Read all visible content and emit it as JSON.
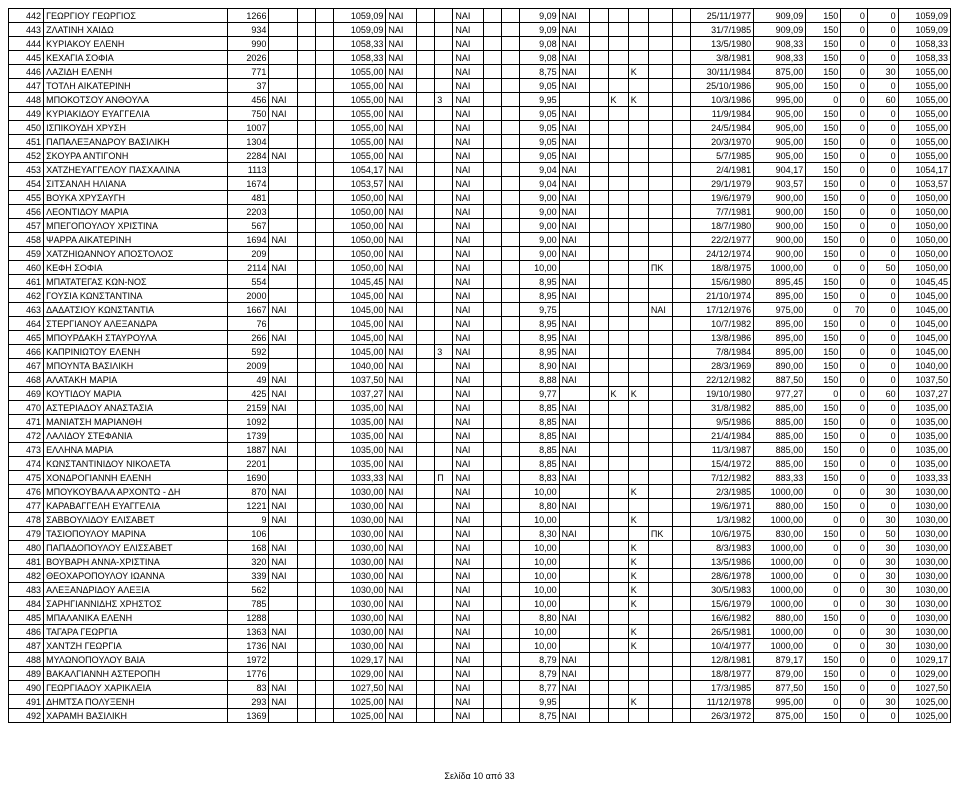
{
  "footer": "Σελίδα 10 από 33",
  "rows": [
    {
      "n": "442",
      "name": "ΓΕΩΡΓΙΟΥ ΓΕΩΡΓΙΟΣ",
      "id": "1266",
      "f1": "",
      "v1": "1059,09",
      "a": "ΝΑΙ",
      "p": "",
      "b": "ΝΑΙ",
      "v2": "9,09",
      "c": "ΝΑΙ",
      "k1": "",
      "k2": "",
      "nx": "",
      "date": "25/11/1977",
      "v3": "909,09",
      "v4": "150",
      "v5": "0",
      "v6": "0",
      "v7": "1059,09"
    },
    {
      "n": "443",
      "name": "ΖΛΑΤΙΝΗ ΧΑΙΔΩ",
      "id": "934",
      "f1": "",
      "v1": "1059,09",
      "a": "ΝΑΙ",
      "p": "",
      "b": "ΝΑΙ",
      "v2": "9,09",
      "c": "ΝΑΙ",
      "k1": "",
      "k2": "",
      "nx": "",
      "date": "31/7/1985",
      "v3": "909,09",
      "v4": "150",
      "v5": "0",
      "v6": "0",
      "v7": "1059,09"
    },
    {
      "n": "444",
      "name": "ΚΥΡΙΑΚΟΥ ΕΛΕΝΗ",
      "id": "990",
      "f1": "",
      "v1": "1058,33",
      "a": "ΝΑΙ",
      "p": "",
      "b": "ΝΑΙ",
      "v2": "9,08",
      "c": "ΝΑΙ",
      "k1": "",
      "k2": "",
      "nx": "",
      "date": "13/5/1980",
      "v3": "908,33",
      "v4": "150",
      "v5": "0",
      "v6": "0",
      "v7": "1058,33"
    },
    {
      "n": "445",
      "name": "ΚΕΧΑΓΙΑ ΣΟΦΙΑ",
      "id": "2026",
      "f1": "",
      "v1": "1058,33",
      "a": "ΝΑΙ",
      "p": "",
      "b": "ΝΑΙ",
      "v2": "9,08",
      "c": "ΝΑΙ",
      "k1": "",
      "k2": "",
      "nx": "",
      "date": "3/8/1981",
      "v3": "908,33",
      "v4": "150",
      "v5": "0",
      "v6": "0",
      "v7": "1058,33"
    },
    {
      "n": "446",
      "name": "ΛΑΖΙΔΗ ΕΛΕΝΗ",
      "id": "771",
      "f1": "",
      "v1": "1055,00",
      "a": "ΝΑΙ",
      "p": "",
      "b": "ΝΑΙ",
      "v2": "8,75",
      "c": "ΝΑΙ",
      "k1": "",
      "k2": "Κ",
      "nx": "",
      "date": "30/11/1984",
      "v3": "875,00",
      "v4": "150",
      "v5": "0",
      "v6": "30",
      "v7": "1055,00"
    },
    {
      "n": "447",
      "name": "ΤΟΤΛΗ ΑΙΚΑΤΕΡΙΝΗ",
      "id": "37",
      "f1": "",
      "v1": "1055,00",
      "a": "ΝΑΙ",
      "p": "",
      "b": "ΝΑΙ",
      "v2": "9,05",
      "c": "ΝΑΙ",
      "k1": "",
      "k2": "",
      "nx": "",
      "date": "25/10/1986",
      "v3": "905,00",
      "v4": "150",
      "v5": "0",
      "v6": "0",
      "v7": "1055,00"
    },
    {
      "n": "448",
      "name": "ΜΠΟΚΟΤΣΟΥ ΑΝΘΟΥΛΑ",
      "id": "456",
      "f1": "ΝΑΙ",
      "v1": "1055,00",
      "a": "ΝΑΙ",
      "p": "3",
      "b": "ΝΑΙ",
      "v2": "9,95",
      "c": "",
      "k1": "Κ",
      "k2": "Κ",
      "nx": "",
      "date": "10/3/1986",
      "v3": "995,00",
      "v4": "0",
      "v5": "0",
      "v6": "60",
      "v7": "1055,00"
    },
    {
      "n": "449",
      "name": "ΚΥΡΙΑΚΙΔΟΥ ΕΥΑΓΓΕΛΙΑ",
      "id": "750",
      "f1": "ΝΑΙ",
      "v1": "1055,00",
      "a": "ΝΑΙ",
      "p": "",
      "b": "ΝΑΙ",
      "v2": "9,05",
      "c": "ΝΑΙ",
      "k1": "",
      "k2": "",
      "nx": "",
      "date": "11/9/1984",
      "v3": "905,00",
      "v4": "150",
      "v5": "0",
      "v6": "0",
      "v7": "1055,00"
    },
    {
      "n": "450",
      "name": "ΙΣΠΙΚΟΥΔΗ ΧΡΥΣΗ",
      "id": "1007",
      "f1": "",
      "v1": "1055,00",
      "a": "ΝΑΙ",
      "p": "",
      "b": "ΝΑΙ",
      "v2": "9,05",
      "c": "ΝΑΙ",
      "k1": "",
      "k2": "",
      "nx": "",
      "date": "24/5/1984",
      "v3": "905,00",
      "v4": "150",
      "v5": "0",
      "v6": "0",
      "v7": "1055,00"
    },
    {
      "n": "451",
      "name": "ΠΑΠΑΛΕΞΑΝΔΡΟΥ ΒΑΣΙΛΙΚΗ",
      "id": "1304",
      "f1": "",
      "v1": "1055,00",
      "a": "ΝΑΙ",
      "p": "",
      "b": "ΝΑΙ",
      "v2": "9,05",
      "c": "ΝΑΙ",
      "k1": "",
      "k2": "",
      "nx": "",
      "date": "20/3/1970",
      "v3": "905,00",
      "v4": "150",
      "v5": "0",
      "v6": "0",
      "v7": "1055,00"
    },
    {
      "n": "452",
      "name": "ΣΚΟΥΡΑ ΑΝΤΙΓΟΝΗ",
      "id": "2284",
      "f1": "ΝΑΙ",
      "v1": "1055,00",
      "a": "ΝΑΙ",
      "p": "",
      "b": "ΝΑΙ",
      "v2": "9,05",
      "c": "ΝΑΙ",
      "k1": "",
      "k2": "",
      "nx": "",
      "date": "5/7/1985",
      "v3": "905,00",
      "v4": "150",
      "v5": "0",
      "v6": "0",
      "v7": "1055,00"
    },
    {
      "n": "453",
      "name": "ΧΑΤΖΗΕΥΑΓΓΕΛΟΥ ΠΑΣΧΑΛΙΝΑ",
      "id": "1113",
      "f1": "",
      "v1": "1054,17",
      "a": "ΝΑΙ",
      "p": "",
      "b": "ΝΑΙ",
      "v2": "9,04",
      "c": "ΝΑΙ",
      "k1": "",
      "k2": "",
      "nx": "",
      "date": "2/4/1981",
      "v3": "904,17",
      "v4": "150",
      "v5": "0",
      "v6": "0",
      "v7": "1054,17"
    },
    {
      "n": "454",
      "name": "ΣΙΤΣΑΝΛΗ ΗΛΙΑΝΑ",
      "id": "1674",
      "f1": "",
      "v1": "1053,57",
      "a": "ΝΑΙ",
      "p": "",
      "b": "ΝΑΙ",
      "v2": "9,04",
      "c": "ΝΑΙ",
      "k1": "",
      "k2": "",
      "nx": "",
      "date": "29/1/1979",
      "v3": "903,57",
      "v4": "150",
      "v5": "0",
      "v6": "0",
      "v7": "1053,57"
    },
    {
      "n": "455",
      "name": "ΒΟΥΚΑ ΧΡΥΣΑΥΓΗ",
      "id": "481",
      "f1": "",
      "v1": "1050,00",
      "a": "ΝΑΙ",
      "p": "",
      "b": "ΝΑΙ",
      "v2": "9,00",
      "c": "ΝΑΙ",
      "k1": "",
      "k2": "",
      "nx": "",
      "date": "19/6/1979",
      "v3": "900,00",
      "v4": "150",
      "v5": "0",
      "v6": "0",
      "v7": "1050,00"
    },
    {
      "n": "456",
      "name": "ΛΕΟΝΤΙΔΟΥ ΜΑΡΙΑ",
      "id": "2203",
      "f1": "",
      "v1": "1050,00",
      "a": "ΝΑΙ",
      "p": "",
      "b": "ΝΑΙ",
      "v2": "9,00",
      "c": "ΝΑΙ",
      "k1": "",
      "k2": "",
      "nx": "",
      "date": "7/7/1981",
      "v3": "900,00",
      "v4": "150",
      "v5": "0",
      "v6": "0",
      "v7": "1050,00"
    },
    {
      "n": "457",
      "name": "ΜΠΕΓΟΠΟΥΛΟΥ ΧΡΙΣΤΙΝΑ",
      "id": "567",
      "f1": "",
      "v1": "1050,00",
      "a": "ΝΑΙ",
      "p": "",
      "b": "ΝΑΙ",
      "v2": "9,00",
      "c": "ΝΑΙ",
      "k1": "",
      "k2": "",
      "nx": "",
      "date": "18/7/1980",
      "v3": "900,00",
      "v4": "150",
      "v5": "0",
      "v6": "0",
      "v7": "1050,00"
    },
    {
      "n": "458",
      "name": "ΨΑΡΡΑ ΑΙΚΑΤΕΡΙΝΗ",
      "id": "1694",
      "f1": "ΝΑΙ",
      "v1": "1050,00",
      "a": "ΝΑΙ",
      "p": "",
      "b": "ΝΑΙ",
      "v2": "9,00",
      "c": "ΝΑΙ",
      "k1": "",
      "k2": "",
      "nx": "",
      "date": "22/2/1977",
      "v3": "900,00",
      "v4": "150",
      "v5": "0",
      "v6": "0",
      "v7": "1050,00"
    },
    {
      "n": "459",
      "name": "ΧΑΤΖΗΙΩΑΝΝΟΥ ΑΠΟΣΤΟΛΟΣ",
      "id": "209",
      "f1": "",
      "v1": "1050,00",
      "a": "ΝΑΙ",
      "p": "",
      "b": "ΝΑΙ",
      "v2": "9,00",
      "c": "ΝΑΙ",
      "k1": "",
      "k2": "",
      "nx": "",
      "date": "24/12/1974",
      "v3": "900,00",
      "v4": "150",
      "v5": "0",
      "v6": "0",
      "v7": "1050,00"
    },
    {
      "n": "460",
      "name": "ΚΕΦΗ ΣΟΦΙΑ",
      "id": "2114",
      "f1": "ΝΑΙ",
      "v1": "1050,00",
      "a": "ΝΑΙ",
      "p": "",
      "b": "ΝΑΙ",
      "v2": "10,00",
      "c": "",
      "k1": "",
      "k2": "",
      "nx": "ΠΚ",
      "date": "18/8/1975",
      "v3": "1000,00",
      "v4": "0",
      "v5": "0",
      "v6": "50",
      "v7": "1050,00"
    },
    {
      "n": "461",
      "name": "ΜΠΑΤΑΤΕΓΑΣ ΚΩΝ-ΝΟΣ",
      "id": "554",
      "f1": "",
      "v1": "1045,45",
      "a": "ΝΑΙ",
      "p": "",
      "b": "ΝΑΙ",
      "v2": "8,95",
      "c": "ΝΑΙ",
      "k1": "",
      "k2": "",
      "nx": "",
      "date": "15/6/1980",
      "v3": "895,45",
      "v4": "150",
      "v5": "0",
      "v6": "0",
      "v7": "1045,45"
    },
    {
      "n": "462",
      "name": "ΓΟΥΣΙΑ ΚΩΝΣΤΑΝΤΙΝΑ",
      "id": "2000",
      "f1": "",
      "v1": "1045,00",
      "a": "ΝΑΙ",
      "p": "",
      "b": "ΝΑΙ",
      "v2": "8,95",
      "c": "ΝΑΙ",
      "k1": "",
      "k2": "",
      "nx": "",
      "date": "21/10/1974",
      "v3": "895,00",
      "v4": "150",
      "v5": "0",
      "v6": "0",
      "v7": "1045,00"
    },
    {
      "n": "463",
      "name": "ΔΑΔΑΤΣΙΟΥ ΚΩΝΣΤΑΝΤΙΑ",
      "id": "1667",
      "f1": "ΝΑΙ",
      "v1": "1045,00",
      "a": "ΝΑΙ",
      "p": "",
      "b": "ΝΑΙ",
      "v2": "9,75",
      "c": "",
      "k1": "",
      "k2": "",
      "nx": "ΝΑΙ",
      "date": "17/12/1976",
      "v3": "975,00",
      "v4": "0",
      "v5": "70",
      "v6": "0",
      "v7": "1045,00"
    },
    {
      "n": "464",
      "name": "ΣΤΕΡΓΙΑΝΟΥ ΑΛΕΞΑΝΔΡΑ",
      "id": "76",
      "f1": "",
      "v1": "1045,00",
      "a": "ΝΑΙ",
      "p": "",
      "b": "ΝΑΙ",
      "v2": "8,95",
      "c": "ΝΑΙ",
      "k1": "",
      "k2": "",
      "nx": "",
      "date": "10/7/1982",
      "v3": "895,00",
      "v4": "150",
      "v5": "0",
      "v6": "0",
      "v7": "1045,00"
    },
    {
      "n": "465",
      "name": "ΜΠΟΥΡΔΑΚΗ ΣΤΑΥΡΟΥΛΑ",
      "id": "266",
      "f1": "ΝΑΙ",
      "v1": "1045,00",
      "a": "ΝΑΙ",
      "p": "",
      "b": "ΝΑΙ",
      "v2": "8,95",
      "c": "ΝΑΙ",
      "k1": "",
      "k2": "",
      "nx": "",
      "date": "13/8/1986",
      "v3": "895,00",
      "v4": "150",
      "v5": "0",
      "v6": "0",
      "v7": "1045,00"
    },
    {
      "n": "466",
      "name": "ΚΑΠΡΙΝΙΩΤΟΥ ΕΛΕΝΗ",
      "id": "592",
      "f1": "",
      "v1": "1045,00",
      "a": "ΝΑΙ",
      "p": "3",
      "b": "ΝΑΙ",
      "v2": "8,95",
      "c": "ΝΑΙ",
      "k1": "",
      "k2": "",
      "nx": "",
      "date": "7/8/1984",
      "v3": "895,00",
      "v4": "150",
      "v5": "0",
      "v6": "0",
      "v7": "1045,00"
    },
    {
      "n": "467",
      "name": "ΜΠΟΥΝΤΑ ΒΑΣΙΛΙΚΗ",
      "id": "2009",
      "f1": "",
      "v1": "1040,00",
      "a": "ΝΑΙ",
      "p": "",
      "b": "ΝΑΙ",
      "v2": "8,90",
      "c": "ΝΑΙ",
      "k1": "",
      "k2": "",
      "nx": "",
      "date": "28/3/1969",
      "v3": "890,00",
      "v4": "150",
      "v5": "0",
      "v6": "0",
      "v7": "1040,00"
    },
    {
      "n": "468",
      "name": "ΑΛΑΤΑΚΗ ΜΑΡΙΑ",
      "id": "49",
      "f1": "ΝΑΙ",
      "v1": "1037,50",
      "a": "ΝΑΙ",
      "p": "",
      "b": "ΝΑΙ",
      "v2": "8,88",
      "c": "ΝΑΙ",
      "k1": "",
      "k2": "",
      "nx": "",
      "date": "22/12/1982",
      "v3": "887,50",
      "v4": "150",
      "v5": "0",
      "v6": "0",
      "v7": "1037,50"
    },
    {
      "n": "469",
      "name": "ΚΟΥΤΙΔΟΥ ΜΑΡΙΑ",
      "id": "425",
      "f1": "ΝΑΙ",
      "v1": "1037,27",
      "a": "ΝΑΙ",
      "p": "",
      "b": "ΝΑΙ",
      "v2": "9,77",
      "c": "",
      "k1": "Κ",
      "k2": "Κ",
      "nx": "",
      "date": "19/10/1980",
      "v3": "977,27",
      "v4": "0",
      "v5": "0",
      "v6": "60",
      "v7": "1037,27"
    },
    {
      "n": "470",
      "name": "ΑΣΤΕΡΙΑΔΟΥ ΑΝΑΣΤΑΣΙΑ",
      "id": "2159",
      "f1": "ΝΑΙ",
      "v1": "1035,00",
      "a": "ΝΑΙ",
      "p": "",
      "b": "ΝΑΙ",
      "v2": "8,85",
      "c": "ΝΑΙ",
      "k1": "",
      "k2": "",
      "nx": "",
      "date": "31/8/1982",
      "v3": "885,00",
      "v4": "150",
      "v5": "0",
      "v6": "0",
      "v7": "1035,00"
    },
    {
      "n": "471",
      "name": "ΜΑΝΙΑΤΣΗ ΜΑΡΙΑΝΘΗ",
      "id": "1092",
      "f1": "",
      "v1": "1035,00",
      "a": "ΝΑΙ",
      "p": "",
      "b": "ΝΑΙ",
      "v2": "8,85",
      "c": "ΝΑΙ",
      "k1": "",
      "k2": "",
      "nx": "",
      "date": "9/5/1986",
      "v3": "885,00",
      "v4": "150",
      "v5": "0",
      "v6": "0",
      "v7": "1035,00"
    },
    {
      "n": "472",
      "name": "ΛΑΛΙΔΟΥ ΣΤΕΦΑΝΙΑ",
      "id": "1739",
      "f1": "",
      "v1": "1035,00",
      "a": "ΝΑΙ",
      "p": "",
      "b": "ΝΑΙ",
      "v2": "8,85",
      "c": "ΝΑΙ",
      "k1": "",
      "k2": "",
      "nx": "",
      "date": "21/4/1984",
      "v3": "885,00",
      "v4": "150",
      "v5": "0",
      "v6": "0",
      "v7": "1035,00"
    },
    {
      "n": "473",
      "name": "ΕΛΛΗΝΑ ΜΑΡΙΑ",
      "id": "1887",
      "f1": "ΝΑΙ",
      "v1": "1035,00",
      "a": "ΝΑΙ",
      "p": "",
      "b": "ΝΑΙ",
      "v2": "8,85",
      "c": "ΝΑΙ",
      "k1": "",
      "k2": "",
      "nx": "",
      "date": "11/3/1987",
      "v3": "885,00",
      "v4": "150",
      "v5": "0",
      "v6": "0",
      "v7": "1035,00"
    },
    {
      "n": "474",
      "name": "ΚΩΝΣΤΑΝΤΙΝΙΔΟΥ ΝΙΚΟΛΕΤΑ",
      "id": "2201",
      "f1": "",
      "v1": "1035,00",
      "a": "ΝΑΙ",
      "p": "",
      "b": "ΝΑΙ",
      "v2": "8,85",
      "c": "ΝΑΙ",
      "k1": "",
      "k2": "",
      "nx": "",
      "date": "15/4/1972",
      "v3": "885,00",
      "v4": "150",
      "v5": "0",
      "v6": "0",
      "v7": "1035,00"
    },
    {
      "n": "475",
      "name": "ΧΟΝΔΡΟΓΙΑΝΝΗ ΕΛΕΝΗ",
      "id": "1690",
      "f1": "",
      "v1": "1033,33",
      "a": "ΝΑΙ",
      "p": "Π",
      "b": "ΝΑΙ",
      "v2": "8,83",
      "c": "ΝΑΙ",
      "k1": "",
      "k2": "",
      "nx": "",
      "date": "7/12/1982",
      "v3": "883,33",
      "v4": "150",
      "v5": "0",
      "v6": "0",
      "v7": "1033,33"
    },
    {
      "n": "476",
      "name": "ΜΠΟΥΚΟΥΒΑΛΑ ΑΡΧΟΝΤΩ - ΔΗ",
      "id": "870",
      "f1": "ΝΑΙ",
      "v1": "1030,00",
      "a": "ΝΑΙ",
      "p": "",
      "b": "ΝΑΙ",
      "v2": "10,00",
      "c": "",
      "k1": "",
      "k2": "Κ",
      "nx": "",
      "date": "2/3/1985",
      "v3": "1000,00",
      "v4": "0",
      "v5": "0",
      "v6": "30",
      "v7": "1030,00"
    },
    {
      "n": "477",
      "name": "ΚΑΡΑΒΑΓΓΕΛΗ ΕΥΑΓΓΕΛΙΑ",
      "id": "1221",
      "f1": "ΝΑΙ",
      "v1": "1030,00",
      "a": "ΝΑΙ",
      "p": "",
      "b": "ΝΑΙ",
      "v2": "8,80",
      "c": "ΝΑΙ",
      "k1": "",
      "k2": "",
      "nx": "",
      "date": "19/6/1971",
      "v3": "880,00",
      "v4": "150",
      "v5": "0",
      "v6": "0",
      "v7": "1030,00"
    },
    {
      "n": "478",
      "name": "ΣΑΒΒΟΥΛΙΔΟΥ ΕΛΙΣΑΒΕΤ",
      "id": "9",
      "f1": "ΝΑΙ",
      "v1": "1030,00",
      "a": "ΝΑΙ",
      "p": "",
      "b": "ΝΑΙ",
      "v2": "10,00",
      "c": "",
      "k1": "",
      "k2": "Κ",
      "nx": "",
      "date": "1/3/1982",
      "v3": "1000,00",
      "v4": "0",
      "v5": "0",
      "v6": "30",
      "v7": "1030,00"
    },
    {
      "n": "479",
      "name": "ΤΑΣΙΟΠΟΥΛΟΥ ΜΑΡΙΝΑ",
      "id": "106",
      "f1": "",
      "v1": "1030,00",
      "a": "ΝΑΙ",
      "p": "",
      "b": "ΝΑΙ",
      "v2": "8,30",
      "c": "ΝΑΙ",
      "k1": "",
      "k2": "",
      "nx": "ΠΚ",
      "date": "10/6/1975",
      "v3": "830,00",
      "v4": "150",
      "v5": "0",
      "v6": "50",
      "v7": "1030,00"
    },
    {
      "n": "480",
      "name": "ΠΑΠΑΔΟΠΟΥΛΟΥ ΕΛΙΣΣΑΒΕΤ",
      "id": "168",
      "f1": "ΝΑΙ",
      "v1": "1030,00",
      "a": "ΝΑΙ",
      "p": "",
      "b": "ΝΑΙ",
      "v2": "10,00",
      "c": "",
      "k1": "",
      "k2": "Κ",
      "nx": "",
      "date": "8/3/1983",
      "v3": "1000,00",
      "v4": "0",
      "v5": "0",
      "v6": "30",
      "v7": "1030,00"
    },
    {
      "n": "481",
      "name": "ΒΟΥΒΑΡΗ ΑΝΝΑ-ΧΡΙΣΤΙΝΑ",
      "id": "320",
      "f1": "ΝΑΙ",
      "v1": "1030,00",
      "a": "ΝΑΙ",
      "p": "",
      "b": "ΝΑΙ",
      "v2": "10,00",
      "c": "",
      "k1": "",
      "k2": "Κ",
      "nx": "",
      "date": "13/5/1986",
      "v3": "1000,00",
      "v4": "0",
      "v5": "0",
      "v6": "30",
      "v7": "1030,00"
    },
    {
      "n": "482",
      "name": "ΘΕΟΧΑΡΟΠΟΥΛΟΥ ΙΩΑΝΝΑ",
      "id": "339",
      "f1": "ΝΑΙ",
      "v1": "1030,00",
      "a": "ΝΑΙ",
      "p": "",
      "b": "ΝΑΙ",
      "v2": "10,00",
      "c": "",
      "k1": "",
      "k2": "Κ",
      "nx": "",
      "date": "28/6/1978",
      "v3": "1000,00",
      "v4": "0",
      "v5": "0",
      "v6": "30",
      "v7": "1030,00"
    },
    {
      "n": "483",
      "name": "ΑΛΕΞΑΝΔΡΙΔΟΥ ΑΛΕΞΙΑ",
      "id": "562",
      "f1": "",
      "v1": "1030,00",
      "a": "ΝΑΙ",
      "p": "",
      "b": "ΝΑΙ",
      "v2": "10,00",
      "c": "",
      "k1": "",
      "k2": "Κ",
      "nx": "",
      "date": "30/5/1983",
      "v3": "1000,00",
      "v4": "0",
      "v5": "0",
      "v6": "30",
      "v7": "1030,00"
    },
    {
      "n": "484",
      "name": "ΣΑΡΗΓΙΑΝΝΙΔΗΣ ΧΡΗΣΤΟΣ",
      "id": "785",
      "f1": "",
      "v1": "1030,00",
      "a": "ΝΑΙ",
      "p": "",
      "b": "ΝΑΙ",
      "v2": "10,00",
      "c": "",
      "k1": "",
      "k2": "Κ",
      "nx": "",
      "date": "15/6/1979",
      "v3": "1000,00",
      "v4": "0",
      "v5": "0",
      "v6": "30",
      "v7": "1030,00"
    },
    {
      "n": "485",
      "name": "ΜΠΑΛΑΝΙΚΑ ΕΛΕΝΗ",
      "id": "1288",
      "f1": "",
      "v1": "1030,00",
      "a": "ΝΑΙ",
      "p": "",
      "b": "ΝΑΙ",
      "v2": "8,80",
      "c": "ΝΑΙ",
      "k1": "",
      "k2": "",
      "nx": "",
      "date": "16/6/1982",
      "v3": "880,00",
      "v4": "150",
      "v5": "0",
      "v6": "0",
      "v7": "1030,00"
    },
    {
      "n": "486",
      "name": "ΤΑΓΑΡΑ ΓΕΩΡΓΙΑ",
      "id": "1363",
      "f1": "ΝΑΙ",
      "v1": "1030,00",
      "a": "ΝΑΙ",
      "p": "",
      "b": "ΝΑΙ",
      "v2": "10,00",
      "c": "",
      "k1": "",
      "k2": "Κ",
      "nx": "",
      "date": "26/5/1981",
      "v3": "1000,00",
      "v4": "0",
      "v5": "0",
      "v6": "30",
      "v7": "1030,00"
    },
    {
      "n": "487",
      "name": "ΧΑΝΤΖΗ ΓΕΩΡΓΙΑ",
      "id": "1736",
      "f1": "ΝΑΙ",
      "v1": "1030,00",
      "a": "ΝΑΙ",
      "p": "",
      "b": "ΝΑΙ",
      "v2": "10,00",
      "c": "",
      "k1": "",
      "k2": "Κ",
      "nx": "",
      "date": "10/4/1977",
      "v3": "1000,00",
      "v4": "0",
      "v5": "0",
      "v6": "30",
      "v7": "1030,00"
    },
    {
      "n": "488",
      "name": "ΜΥΛΩΝΟΠΟΥΛΟΥ ΒΑΙΑ",
      "id": "1972",
      "f1": "",
      "v1": "1029,17",
      "a": "ΝΑΙ",
      "p": "",
      "b": "ΝΑΙ",
      "v2": "8,79",
      "c": "ΝΑΙ",
      "k1": "",
      "k2": "",
      "nx": "",
      "date": "12/8/1981",
      "v3": "879,17",
      "v4": "150",
      "v5": "0",
      "v6": "0",
      "v7": "1029,17"
    },
    {
      "n": "489",
      "name": "ΒΑΚΑΛΓΙΑΝΝΗ ΑΣΤΕΡΟΠΗ",
      "id": "1776",
      "f1": "",
      "v1": "1029,00",
      "a": "ΝΑΙ",
      "p": "",
      "b": "ΝΑΙ",
      "v2": "8,79",
      "c": "ΝΑΙ",
      "k1": "",
      "k2": "",
      "nx": "",
      "date": "18/8/1977",
      "v3": "879,00",
      "v4": "150",
      "v5": "0",
      "v6": "0",
      "v7": "1029,00"
    },
    {
      "n": "490",
      "name": "ΓΕΩΡΓΙΑΔΟΥ ΧΑΡΙΚΛΕΙΑ",
      "id": "83",
      "f1": "ΝΑΙ",
      "v1": "1027,50",
      "a": "ΝΑΙ",
      "p": "",
      "b": "ΝΑΙ",
      "v2": "8,77",
      "c": "ΝΑΙ",
      "k1": "",
      "k2": "",
      "nx": "",
      "date": "17/3/1985",
      "v3": "877,50",
      "v4": "150",
      "v5": "0",
      "v6": "0",
      "v7": "1027,50"
    },
    {
      "n": "491",
      "name": "ΔΗΜΤΣΑ ΠΟΛΥΞΕΝΗ",
      "id": "293",
      "f1": "ΝΑΙ",
      "v1": "1025,00",
      "a": "ΝΑΙ",
      "p": "",
      "b": "ΝΑΙ",
      "v2": "9,95",
      "c": "",
      "k1": "",
      "k2": "Κ",
      "nx": "",
      "date": "11/12/1978",
      "v3": "995,00",
      "v4": "0",
      "v5": "0",
      "v6": "30",
      "v7": "1025,00"
    },
    {
      "n": "492",
      "name": "ΧΑΡΑΜΗ ΒΑΣΙΛΙΚΗ",
      "id": "1369",
      "f1": "",
      "v1": "1025,00",
      "a": "ΝΑΙ",
      "p": "",
      "b": "ΝΑΙ",
      "v2": "8,75",
      "c": "ΝΑΙ",
      "k1": "",
      "k2": "",
      "nx": "",
      "date": "26/3/1972",
      "v3": "875,00",
      "v4": "150",
      "v5": "0",
      "v6": "0",
      "v7": "1025,00"
    }
  ]
}
